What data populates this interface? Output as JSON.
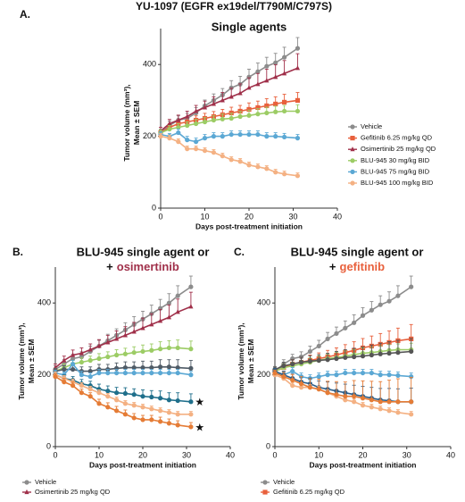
{
  "figure_title": "YU-1097 (EGFR ex19del/T790M/C797S)",
  "chart_data": [
    {
      "type": "line",
      "label": "A.",
      "title": "Single agents",
      "ylabel": [
        "Tumor volume (mm³),",
        "Mean ± SEM"
      ],
      "xlabel": "Days post-treatment initiation",
      "xlim": [
        0,
        40
      ],
      "xticks": [
        0,
        10,
        20,
        30,
        40
      ],
      "ylim": [
        0,
        500
      ],
      "yticks": [
        0,
        200,
        400
      ],
      "legend": "right",
      "x": [
        0,
        2,
        4,
        6,
        8,
        10,
        12,
        14,
        16,
        18,
        20,
        22,
        24,
        26,
        28,
        31
      ],
      "series": [
        {
          "name": "Vehicle",
          "color": "#8c8c8c",
          "marker": "circle",
          "values": [
            210,
            230,
            245,
            250,
            265,
            285,
            300,
            315,
            335,
            345,
            365,
            380,
            395,
            405,
            420,
            445
          ],
          "errors": [
            10,
            12,
            12,
            14,
            15,
            16,
            18,
            18,
            20,
            22,
            22,
            24,
            25,
            26,
            28,
            30
          ]
        },
        {
          "name": "Gefitinib 6.25 mg/kg QD",
          "color": "#e8603c",
          "marker": "square",
          "values": [
            210,
            225,
            235,
            240,
            245,
            250,
            255,
            260,
            265,
            270,
            275,
            280,
            285,
            290,
            295,
            300
          ],
          "errors": [
            8,
            10,
            10,
            12,
            12,
            14,
            14,
            15,
            16,
            16,
            18,
            18,
            20,
            20,
            22,
            22
          ]
        },
        {
          "name": "Osimertinib 25 mg/kg QD",
          "color": "#a0304a",
          "marker": "triangle",
          "values": [
            215,
            235,
            245,
            255,
            270,
            280,
            290,
            300,
            310,
            320,
            335,
            345,
            355,
            365,
            375,
            390
          ],
          "errors": [
            10,
            12,
            14,
            15,
            16,
            18,
            20,
            22,
            24,
            26,
            28,
            30,
            32,
            34,
            36,
            40
          ]
        },
        {
          "name": "BLU-945 30 mg/kg BID",
          "color": "#9ccc65",
          "marker": "circle",
          "values": [
            210,
            220,
            225,
            230,
            235,
            240,
            245,
            248,
            250,
            255,
            258,
            262,
            265,
            268,
            270,
            270
          ],
          "errors": [
            8,
            10,
            10,
            10,
            12,
            12,
            12,
            14,
            14,
            14,
            15,
            15,
            16,
            16,
            16,
            18
          ]
        },
        {
          "name": "BLU-945 75 mg/kg BID",
          "color": "#5ba8d4",
          "marker": "circle",
          "values": [
            205,
            200,
            210,
            190,
            185,
            195,
            200,
            200,
            205,
            205,
            205,
            205,
            200,
            200,
            198,
            195
          ],
          "errors": [
            8,
            8,
            10,
            10,
            10,
            10,
            10,
            10,
            10,
            10,
            10,
            10,
            10,
            10,
            10,
            10
          ]
        },
        {
          "name": "BLU-945 100 mg/kg BID",
          "color": "#f4b183",
          "marker": "circle",
          "values": [
            200,
            195,
            185,
            165,
            165,
            160,
            155,
            145,
            135,
            130,
            120,
            115,
            110,
            100,
            95,
            90
          ],
          "errors": [
            8,
            8,
            8,
            8,
            8,
            8,
            8,
            8,
            8,
            8,
            8,
            8,
            8,
            8,
            8,
            8
          ]
        }
      ]
    },
    {
      "type": "line",
      "label": "B.",
      "title": "BLU-945 single agent or",
      "title_line2": [
        "+",
        "osimertinib"
      ],
      "highlight_color": "#a0304a",
      "ylabel": [
        "Tumor volume (mm³),",
        "Mean ± SEM"
      ],
      "xlabel": "Days post-treatment initiation",
      "xlim": [
        0,
        40
      ],
      "xticks": [
        0,
        10,
        20,
        30,
        40
      ],
      "ylim": [
        0,
        500
      ],
      "yticks": [
        0,
        200,
        400
      ],
      "legend": "bottom",
      "x": [
        0,
        2,
        4,
        6,
        8,
        10,
        12,
        14,
        16,
        18,
        20,
        22,
        24,
        26,
        28,
        31
      ],
      "series": [
        {
          "name": "Vehicle",
          "color": "#8c8c8c",
          "marker": "circle",
          "values": [
            215,
            230,
            245,
            250,
            265,
            280,
            295,
            310,
            325,
            340,
            355,
            370,
            385,
            400,
            420,
            445
          ],
          "errors": [
            10,
            12,
            12,
            14,
            15,
            16,
            18,
            18,
            20,
            22,
            22,
            24,
            25,
            26,
            28,
            30
          ]
        },
        {
          "name": "Osimertinib 25 mg/kg QD",
          "color": "#a0304a",
          "marker": "triangle",
          "values": [
            220,
            240,
            255,
            260,
            270,
            280,
            290,
            300,
            310,
            320,
            330,
            340,
            350,
            360,
            375,
            390
          ],
          "errors": [
            10,
            12,
            14,
            15,
            16,
            18,
            20,
            22,
            24,
            26,
            28,
            30,
            32,
            34,
            36,
            40
          ]
        },
        {
          "color": "#9ccc65",
          "marker": "circle",
          "values": [
            210,
            220,
            230,
            235,
            240,
            245,
            250,
            255,
            258,
            262,
            265,
            268,
            272,
            275,
            275,
            272
          ],
          "errors": [
            8,
            10,
            10,
            12,
            12,
            14,
            14,
            15,
            16,
            16,
            18,
            18,
            20,
            20,
            22,
            22
          ]
        },
        {
          "color": "#4f5b66",
          "marker": "circle",
          "values": [
            210,
            215,
            215,
            210,
            210,
            215,
            215,
            218,
            220,
            220,
            220,
            220,
            222,
            222,
            220,
            218
          ],
          "errors": [
            8,
            10,
            10,
            12,
            12,
            14,
            14,
            15,
            16,
            16,
            18,
            18,
            20,
            20,
            22,
            22
          ]
        },
        {
          "color": "#5ba8d4",
          "marker": "circle",
          "values": [
            205,
            200,
            230,
            200,
            195,
            205,
            205,
            205,
            205,
            205,
            205,
            205,
            205,
            205,
            205,
            200
          ],
          "errors": [
            8,
            8,
            10,
            10,
            10,
            10,
            10,
            10,
            10,
            10,
            10,
            10,
            10,
            10,
            10,
            10
          ]
        },
        {
          "color": "#1f6f8b",
          "marker": "circle",
          "values": [
            200,
            190,
            185,
            175,
            170,
            160,
            155,
            150,
            148,
            145,
            140,
            138,
            135,
            130,
            128,
            125
          ],
          "errors": [
            8,
            10,
            10,
            12,
            12,
            14,
            14,
            15,
            16,
            16,
            18,
            18,
            20,
            20,
            22,
            22
          ]
        },
        {
          "color": "#f4b183",
          "marker": "circle",
          "values": [
            200,
            190,
            180,
            170,
            160,
            150,
            140,
            130,
            120,
            115,
            110,
            105,
            100,
            95,
            90,
            90
          ],
          "errors": [
            8,
            8,
            8,
            8,
            8,
            8,
            8,
            8,
            8,
            8,
            8,
            8,
            8,
            8,
            8,
            8
          ]
        },
        {
          "color": "#e57c36",
          "marker": "circle",
          "values": [
            195,
            180,
            170,
            150,
            140,
            120,
            110,
            100,
            90,
            80,
            75,
            75,
            70,
            65,
            60,
            55
          ],
          "errors": [
            8,
            10,
            10,
            10,
            10,
            12,
            12,
            12,
            12,
            12,
            12,
            12,
            12,
            12,
            12,
            12
          ]
        }
      ],
      "annotations": [
        {
          "text": "★",
          "x": 33,
          "y": 122
        },
        {
          "text": "★",
          "x": 33,
          "y": 52
        }
      ]
    },
    {
      "type": "line",
      "label": "C.",
      "title": "BLU-945 single agent or",
      "title_line2": [
        "+",
        "gefitinib"
      ],
      "highlight_color": "#e8603c",
      "ylabel": [
        "Tumor volume (mm³),",
        "Mean ± SEM"
      ],
      "xlabel": "Days post-treatment initiation",
      "xlim": [
        0,
        40
      ],
      "xticks": [
        0,
        10,
        20,
        30,
        40
      ],
      "ylim": [
        0,
        500
      ],
      "yticks": [
        0,
        200,
        400
      ],
      "legend": "bottom",
      "x": [
        0,
        2,
        4,
        6,
        8,
        10,
        12,
        14,
        16,
        18,
        20,
        22,
        24,
        26,
        28,
        31
      ],
      "series": [
        {
          "name": "Vehicle",
          "color": "#8c8c8c",
          "marker": "circle",
          "values": [
            210,
            230,
            245,
            250,
            265,
            280,
            300,
            315,
            330,
            345,
            365,
            380,
            395,
            405,
            420,
            445
          ],
          "errors": [
            10,
            12,
            12,
            14,
            15,
            16,
            18,
            18,
            20,
            22,
            22,
            24,
            25,
            26,
            28,
            30
          ]
        },
        {
          "name": "Gefitinib 6.25 mg/kg QD",
          "color": "#e8603c",
          "marker": "square",
          "values": [
            210,
            220,
            230,
            235,
            240,
            245,
            250,
            255,
            262,
            268,
            275,
            280,
            285,
            290,
            295,
            300
          ],
          "errors": [
            8,
            10,
            12,
            14,
            15,
            16,
            18,
            20,
            22,
            24,
            26,
            28,
            30,
            32,
            35,
            40
          ]
        },
        {
          "color": "#9ccc65",
          "marker": "circle",
          "values": [
            210,
            220,
            225,
            230,
            235,
            240,
            245,
            248,
            252,
            256,
            260,
            262,
            265,
            268,
            270,
            270
          ],
          "errors": [
            8,
            10,
            10,
            10,
            12,
            12,
            12,
            14,
            14,
            14,
            15,
            15,
            16,
            16,
            16,
            18
          ]
        },
        {
          "color": "#555555",
          "marker": "circle",
          "values": [
            215,
            225,
            230,
            235,
            238,
            240,
            242,
            245,
            248,
            250,
            252,
            255,
            258,
            260,
            262,
            265
          ],
          "errors": [
            8,
            10,
            12,
            14,
            15,
            16,
            18,
            20,
            22,
            24,
            26,
            28,
            30,
            32,
            34,
            36
          ]
        },
        {
          "color": "#5ba8d4",
          "marker": "circle",
          "values": [
            205,
            200,
            210,
            195,
            190,
            195,
            200,
            200,
            205,
            205,
            205,
            205,
            200,
            200,
            198,
            195
          ],
          "errors": [
            8,
            8,
            10,
            10,
            10,
            10,
            10,
            10,
            10,
            10,
            10,
            10,
            10,
            10,
            10,
            10
          ]
        },
        {
          "color": "#2c5f8a",
          "marker": "circle",
          "values": [
            210,
            200,
            190,
            180,
            175,
            165,
            160,
            155,
            150,
            145,
            140,
            135,
            130,
            128,
            125,
            125
          ],
          "errors": [
            8,
            10,
            12,
            14,
            16,
            18,
            20,
            22,
            24,
            26,
            28,
            30,
            32,
            34,
            36,
            38
          ]
        },
        {
          "color": "#f4b183",
          "marker": "circle",
          "values": [
            200,
            190,
            170,
            165,
            165,
            160,
            150,
            140,
            130,
            125,
            115,
            110,
            105,
            100,
            95,
            90
          ],
          "errors": [
            8,
            8,
            8,
            8,
            8,
            8,
            8,
            8,
            8,
            8,
            8,
            8,
            8,
            8,
            8,
            8
          ]
        },
        {
          "color": "#e57c36",
          "marker": "circle",
          "values": [
            205,
            195,
            185,
            175,
            165,
            160,
            150,
            145,
            140,
            140,
            135,
            130,
            125,
            125,
            125,
            125
          ],
          "errors": [
            8,
            12,
            16,
            20,
            24,
            28,
            32,
            36,
            40,
            44,
            48,
            52,
            56,
            60,
            64,
            68
          ]
        }
      ]
    }
  ]
}
